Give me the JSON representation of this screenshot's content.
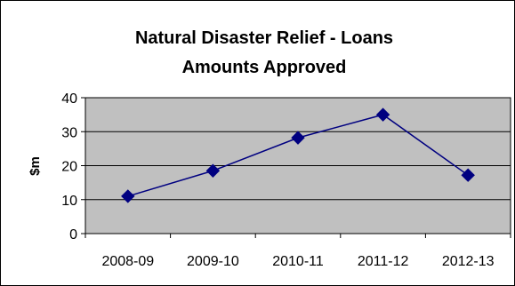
{
  "chart_data": {
    "type": "line",
    "title_line1": "Natural Disaster Relief - Loans",
    "title_line2": "Amounts Approved",
    "xlabel": "",
    "ylabel": "$m",
    "categories": [
      "2008-09",
      "2009-10",
      "2010-11",
      "2011-12",
      "2012-13"
    ],
    "series": [
      {
        "values": [
          11,
          18.5,
          28.2,
          35,
          17.2
        ]
      }
    ],
    "ylim": [
      0,
      40
    ],
    "yticks": [
      0,
      10,
      20,
      30,
      40
    ],
    "grid": true,
    "legend": "none",
    "colors": {
      "plot_background": "#c0c0c0",
      "line": "#000080",
      "marker": "#000080",
      "gridline": "#000000",
      "border": "#000000"
    },
    "marker": "diamond-icon"
  }
}
